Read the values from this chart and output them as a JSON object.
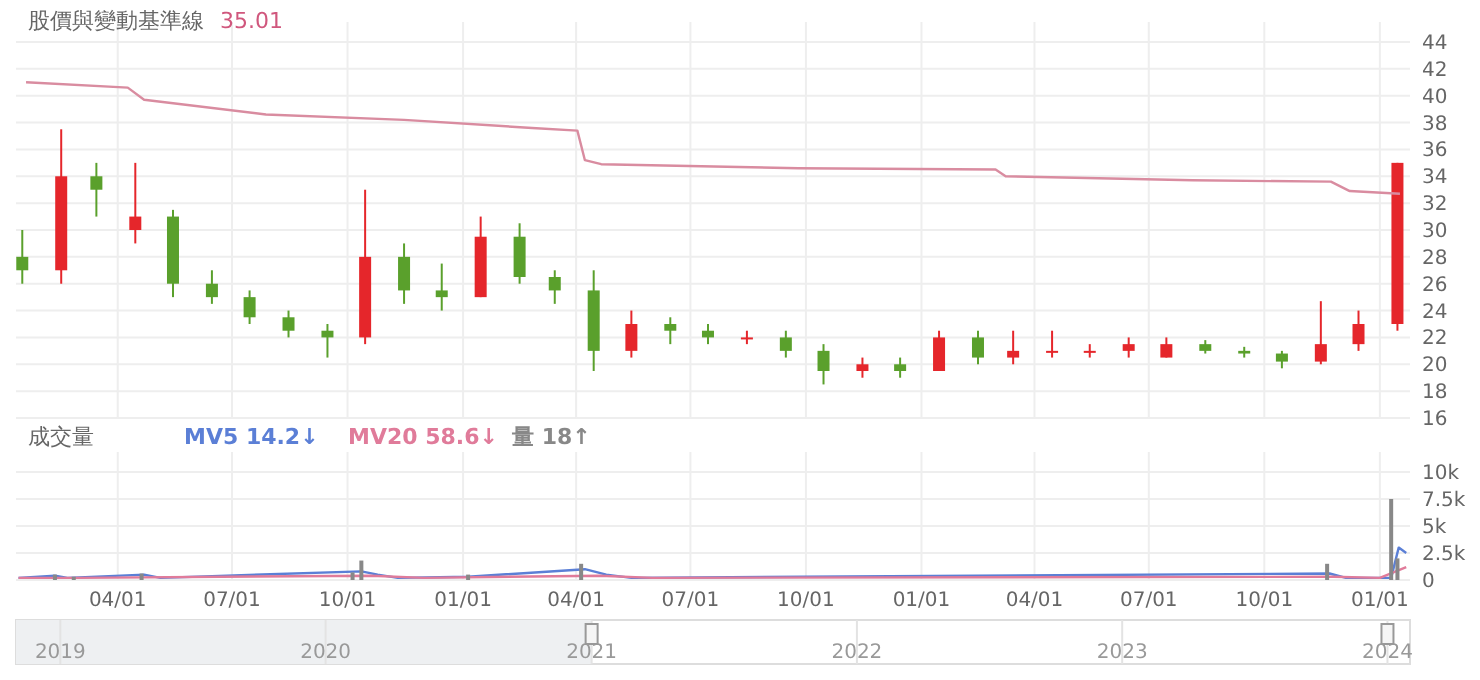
{
  "chart_data": [
    {
      "type": "candlestick",
      "title": "股價與變動基準線",
      "annotations": [
        "35.01"
      ],
      "x": [
        "2021-01-15",
        "2021-02-15",
        "2021-03-15",
        "2021-04-15",
        "2021-05-15",
        "2021-06-15",
        "2021-07-15",
        "2021-08-15",
        "2021-09-15",
        "2021-10-15",
        "2021-11-15",
        "2021-12-15",
        "2022-01-15",
        "2022-02-15",
        "2022-03-15",
        "2022-04-15",
        "2022-05-15",
        "2022-06-15",
        "2022-07-15",
        "2022-08-15",
        "2022-09-15",
        "2022-10-15",
        "2022-11-15",
        "2022-12-15",
        "2023-01-15",
        "2023-02-15",
        "2023-03-15",
        "2023-04-15",
        "2023-05-15",
        "2023-06-15",
        "2023-07-15",
        "2023-08-15",
        "2023-09-15",
        "2023-10-15",
        "2023-11-15",
        "2023-12-15",
        "2024-01-15"
      ],
      "ohlc": [
        [
          28,
          30,
          26,
          27
        ],
        [
          27,
          37.5,
          26,
          34
        ],
        [
          34,
          35,
          31,
          33
        ],
        [
          30,
          35,
          29,
          31
        ],
        [
          31,
          31.5,
          25,
          26
        ],
        [
          26,
          27,
          24.5,
          25
        ],
        [
          25,
          25.5,
          23,
          23.5
        ],
        [
          23.5,
          24,
          22,
          22.5
        ],
        [
          22.5,
          23,
          20.5,
          22
        ],
        [
          22,
          33,
          21.5,
          28
        ],
        [
          28,
          29,
          24.5,
          25.5
        ],
        [
          25.5,
          27.5,
          24,
          25
        ],
        [
          25,
          31,
          25,
          29.5
        ],
        [
          29.5,
          30.5,
          26,
          26.5
        ],
        [
          26.5,
          27,
          24.5,
          25.5
        ],
        [
          25.5,
          27,
          19.5,
          21
        ],
        [
          21,
          24,
          20.5,
          23
        ],
        [
          23,
          23.5,
          21.5,
          22.5
        ],
        [
          22.5,
          23,
          21.5,
          22
        ],
        [
          22,
          22.5,
          21.5,
          22
        ],
        [
          22,
          22.5,
          20.5,
          21
        ],
        [
          21,
          21.5,
          18.5,
          19.5
        ],
        [
          19.5,
          20.5,
          19,
          20
        ],
        [
          20,
          20.5,
          19,
          19.5
        ],
        [
          19.5,
          22.5,
          19.5,
          22
        ],
        [
          22,
          22.5,
          20,
          20.5
        ],
        [
          20.5,
          22.5,
          20,
          21
        ],
        [
          21,
          22.5,
          20.5,
          21
        ],
        [
          21,
          21.5,
          20.5,
          21
        ],
        [
          21,
          22,
          20.5,
          21.5
        ],
        [
          20.5,
          22,
          20.5,
          21.5
        ],
        [
          21.5,
          21.8,
          20.8,
          21
        ],
        [
          21,
          21.3,
          20.5,
          20.8
        ],
        [
          20.8,
          21,
          19.7,
          20.2
        ],
        [
          20.2,
          24.7,
          20,
          21.5
        ],
        [
          21.5,
          24,
          21,
          23
        ],
        [
          23,
          35,
          22.5,
          35
        ]
      ],
      "colors": [
        "#5aa02c",
        "#e5262b",
        "#5aa02c",
        "#e5262b",
        "#5aa02c",
        "#5aa02c",
        "#5aa02c",
        "#5aa02c",
        "#5aa02c",
        "#e5262b",
        "#5aa02c",
        "#5aa02c",
        "#e5262b",
        "#5aa02c",
        "#5aa02c",
        "#5aa02c",
        "#e5262b",
        "#5aa02c",
        "#5aa02c",
        "#e5262b",
        "#5aa02c",
        "#5aa02c",
        "#e5262b",
        "#5aa02c",
        "#e5262b",
        "#5aa02c",
        "#e5262b",
        "#e5262b",
        "#e5262b",
        "#e5262b",
        "#e5262b",
        "#5aa02c",
        "#5aa02c",
        "#5aa02c",
        "#e5262b",
        "#e5262b",
        "#e5262b"
      ],
      "series": [
        {
          "type": "line",
          "color": "#d98ca0",
          "x": [
            "2021-01-18",
            "2021-04-09",
            "2021-04-22",
            "2021-07-28",
            "2021-11-15",
            "2022-02-25",
            "2022-04-02",
            "2022-04-08",
            "2022-04-21",
            "2022-09-25",
            "2023-03-01",
            "2023-03-09",
            "2023-08-05",
            "2023-11-23",
            "2023-12-08",
            "2024-01-17"
          ],
          "values": [
            41.0,
            40.6,
            39.7,
            38.6,
            38.2,
            37.6,
            37.4,
            35.2,
            34.9,
            34.6,
            34.5,
            34.0,
            33.7,
            33.6,
            32.9,
            32.7
          ]
        }
      ],
      "xlim": [
        "2021-01-10",
        "2024-01-25"
      ],
      "ylim": [
        16,
        44
      ],
      "yticks": [
        16,
        18,
        20,
        22,
        24,
        26,
        28,
        30,
        32,
        34,
        36,
        38,
        40,
        42,
        44
      ],
      "grid": true,
      "tick_labels": "y"
    },
    {
      "type": "bar",
      "title": "成交量",
      "legend": "top left",
      "series": [
        {
          "name": "MV5 14.2↓",
          "type": "line",
          "color": "#5b7fd6",
          "x": [
            "2021-01-12",
            "2021-02-10",
            "2021-02-20",
            "2021-04-22",
            "2021-05-05",
            "2021-10-12",
            "2021-10-25",
            "2021-11-10",
            "2022-01-05",
            "2022-04-08",
            "2022-04-25",
            "2022-05-15",
            "2023-11-22",
            "2023-12-05",
            "2024-01-10",
            "2024-01-16",
            "2024-01-22"
          ],
          "values": [
            200,
            400,
            200,
            500,
            200,
            800,
            500,
            200,
            300,
            1000,
            500,
            200,
            600,
            200,
            200,
            3000,
            2500
          ]
        },
        {
          "name": "MV20 58.6↓",
          "type": "line",
          "color": "#e07b9a",
          "x": [
            "2021-01-12",
            "2021-03-01",
            "2021-10-20",
            "2021-12-01",
            "2022-04-20",
            "2022-06-01",
            "2023-11-25",
            "2024-01-01",
            "2024-01-22"
          ],
          "values": [
            200,
            200,
            400,
            200,
            400,
            200,
            300,
            200,
            1200
          ]
        },
        {
          "name": "量 18↑",
          "type": "bar",
          "color": "#888888",
          "x": [
            "2021-02-10",
            "2021-02-25",
            "2021-04-20",
            "2021-10-05",
            "2021-10-12",
            "2022-01-05",
            "2022-04-05",
            "2023-11-20",
            "2024-01-10",
            "2024-01-15"
          ],
          "values": [
            500,
            300,
            600,
            700,
            1800,
            500,
            1500,
            1500,
            7500,
            2000
          ]
        }
      ],
      "xlim": [
        "2021-01-10",
        "2024-01-25"
      ],
      "xticks": [
        {
          "value": "2021-04-01",
          "label": "04/01"
        },
        {
          "value": "2021-07-01",
          "label": "07/01"
        },
        {
          "value": "2021-10-01",
          "label": "10/01"
        },
        {
          "value": "2022-01-01",
          "label": "01/01"
        },
        {
          "value": "2022-04-01",
          "label": "04/01"
        },
        {
          "value": "2022-07-01",
          "label": "07/01"
        },
        {
          "value": "2022-10-01",
          "label": "10/01"
        },
        {
          "value": "2023-01-01",
          "label": "01/01"
        },
        {
          "value": "2023-04-01",
          "label": "04/01"
        },
        {
          "value": "2023-07-01",
          "label": "07/01"
        },
        {
          "value": "2023-10-01",
          "label": "10/01"
        },
        {
          "value": "2024-01-01",
          "label": "01/01"
        }
      ],
      "ylim": [
        0,
        10000
      ],
      "yticks": [
        0,
        {
          "value": 2500,
          "label": "2.5k"
        },
        {
          "value": 5000,
          "label": "5k"
        },
        {
          "value": 7500,
          "label": "7.5k"
        },
        {
          "value": 10000,
          "label": "10k"
        }
      ],
      "grid": true,
      "x2lim": [
        "2018-11-01",
        "2024-02-01"
      ],
      "x2ticks": [
        {
          "value": "2019-01-01",
          "label": "2019"
        },
        {
          "value": "2020-01-01",
          "label": "2020"
        },
        {
          "value": "2021-01-01",
          "label": "2021"
        },
        {
          "value": "2022-01-01",
          "label": "2022"
        },
        {
          "value": "2023-01-01",
          "label": "2023"
        },
        {
          "value": "2024-01-01",
          "label": "2024"
        }
      ]
    }
  ]
}
